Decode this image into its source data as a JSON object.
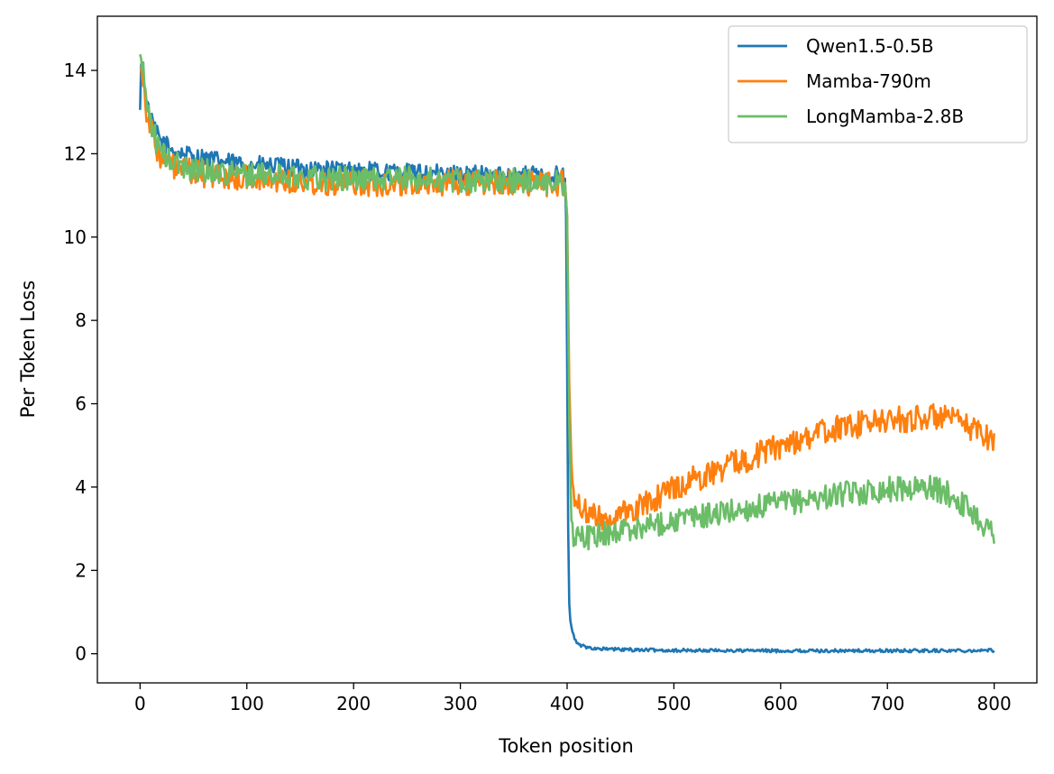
{
  "chart_data": {
    "type": "line",
    "xlabel": "Token position",
    "ylabel": "Per Token Loss",
    "xlim": [
      -40,
      840
    ],
    "ylim": [
      -0.7,
      15.3
    ],
    "xticks": [
      0,
      100,
      200,
      300,
      400,
      500,
      600,
      700,
      800
    ],
    "yticks": [
      0,
      2,
      4,
      6,
      8,
      10,
      12,
      14
    ],
    "legend_position": "top-right",
    "grid": false,
    "series": [
      {
        "name": "Qwen1.5-0.5B",
        "color": "#1f77b4",
        "x": [
          0,
          1,
          2,
          4,
          6,
          8,
          10,
          15,
          20,
          30,
          40,
          60,
          80,
          100,
          150,
          200,
          250,
          300,
          350,
          395,
          398,
          399,
          400,
          401,
          402,
          403,
          405,
          408,
          412,
          420,
          430,
          450,
          500,
          600,
          700,
          800
        ],
        "y": [
          12.9,
          14.3,
          13.9,
          13.6,
          13.3,
          13.0,
          12.8,
          12.5,
          12.3,
          12.1,
          12.0,
          11.9,
          11.8,
          11.75,
          11.65,
          11.6,
          11.55,
          11.5,
          11.5,
          11.5,
          11.4,
          10.5,
          7.0,
          3.0,
          1.2,
          0.8,
          0.5,
          0.3,
          0.2,
          0.15,
          0.12,
          0.1,
          0.08,
          0.07,
          0.07,
          0.08
        ],
        "noise": 0.22
      },
      {
        "name": "Mamba-790m",
        "color": "#ff7f0e",
        "x": [
          0,
          2,
          5,
          10,
          15,
          20,
          30,
          40,
          60,
          80,
          100,
          150,
          200,
          250,
          300,
          350,
          398,
          400,
          402,
          404,
          406,
          410,
          420,
          440,
          460,
          480,
          500,
          550,
          600,
          650,
          700,
          750,
          770,
          790,
          800
        ],
        "y": [
          14.3,
          14.0,
          13.2,
          12.6,
          12.2,
          11.9,
          11.7,
          11.6,
          11.5,
          11.45,
          11.4,
          11.35,
          11.3,
          11.3,
          11.3,
          11.3,
          11.3,
          10.5,
          6.5,
          4.6,
          3.9,
          3.6,
          3.3,
          3.25,
          3.4,
          3.7,
          4.0,
          4.5,
          5.0,
          5.4,
          5.6,
          5.7,
          5.5,
          5.3,
          5.1
        ],
        "noise": 0.32
      },
      {
        "name": "LongMamba-2.8B",
        "color": "#6bbd68",
        "x": [
          0,
          2,
          5,
          10,
          15,
          20,
          30,
          40,
          60,
          80,
          100,
          150,
          200,
          250,
          300,
          350,
          398,
          400,
          402,
          404,
          406,
          410,
          420,
          440,
          460,
          480,
          500,
          550,
          600,
          650,
          700,
          740,
          760,
          780,
          790,
          800
        ],
        "y": [
          14.4,
          14.1,
          13.5,
          12.8,
          12.3,
          12.0,
          11.8,
          11.7,
          11.6,
          11.55,
          11.5,
          11.45,
          11.4,
          11.4,
          11.35,
          11.35,
          11.3,
          10.5,
          5.5,
          3.2,
          2.8,
          2.8,
          2.8,
          2.9,
          3.0,
          3.1,
          3.2,
          3.4,
          3.6,
          3.8,
          3.95,
          4.0,
          3.8,
          3.4,
          3.1,
          2.9
        ],
        "noise": 0.3
      }
    ]
  }
}
